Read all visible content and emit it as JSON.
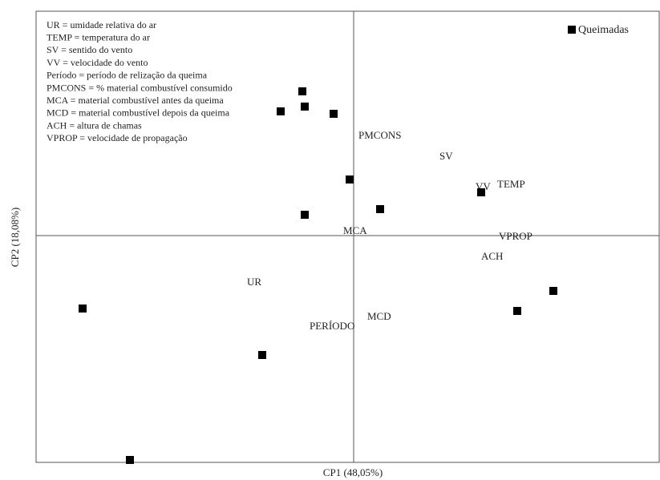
{
  "chart_data": {
    "type": "scatter",
    "x_label": "CP1 (48,05%)",
    "y_label": "CP2 (18,08%)",
    "xlim": [
      -3.96,
      3.81
    ],
    "ylim": [
      -2.83,
      2.8
    ],
    "series": [
      {
        "name": "Queimadas",
        "color": "#000000",
        "x": [
          -0.64,
          -0.61,
          -0.91,
          -0.25,
          -0.05,
          0.33,
          -0.61,
          1.59,
          2.49,
          2.04,
          -3.38,
          -1.14,
          -2.79
        ],
        "values": [
          1.8,
          1.61,
          1.55,
          1.52,
          0.7,
          0.33,
          0.26,
          0.54,
          -0.69,
          -0.94,
          -0.91,
          -1.49,
          -2.8
        ]
      }
    ],
    "variable_labels": [
      {
        "text": "PMCONS",
        "x": 0.06,
        "y": 1.24
      },
      {
        "text": "SV",
        "x": 1.07,
        "y": 0.98
      },
      {
        "text": "VV",
        "x": 1.52,
        "y": 0.6
      },
      {
        "text": "TEMP",
        "x": 1.79,
        "y": 0.63
      },
      {
        "text": "MCA",
        "x": -0.13,
        "y": 0.05
      },
      {
        "text": "VPROP",
        "x": 1.81,
        "y": -0.02
      },
      {
        "text": "ACH",
        "x": 1.59,
        "y": -0.27
      },
      {
        "text": "UR",
        "x": -1.33,
        "y": -0.59
      },
      {
        "text": "MCD",
        "x": 0.17,
        "y": -1.02
      },
      {
        "text": "PERÍODO",
        "x": -0.55,
        "y": -1.14
      }
    ],
    "notes": [
      "UR = umidade relativa do ar",
      "TEMP = temperatura do ar",
      "SV = sentido do vento",
      "VV = velocidade do vento",
      "Período = período de relização da queima",
      "PMCONS = % material combustível consumido",
      "MCA = material combustível antes da queima",
      "MCD = material combustível depois da queima",
      "ACH = altura de chamas",
      "VPROP = velocidade de propagação"
    ],
    "grid": false,
    "legend": "top-right"
  }
}
